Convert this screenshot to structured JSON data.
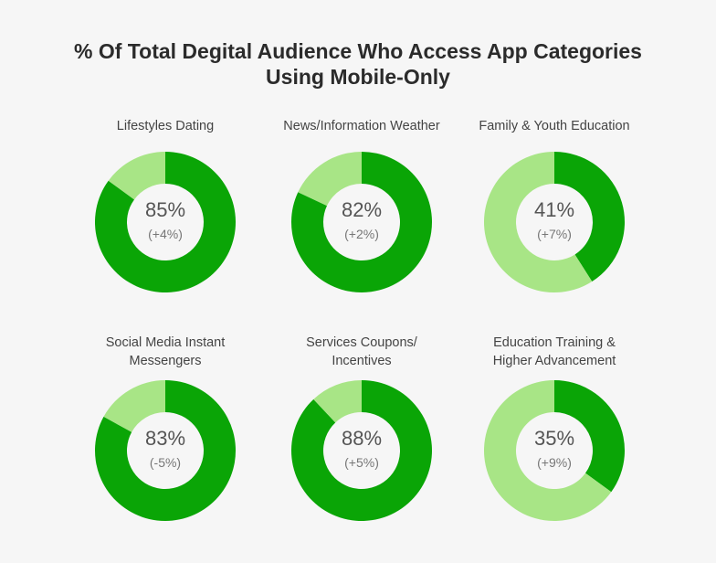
{
  "title_line1": "% Of Total Degital Audience Who Access App Categories",
  "title_line2": "Using Mobile-Only",
  "colors": {
    "primary": "#0aa506",
    "secondary": "#a8e586",
    "center": "#f6f6f6"
  },
  "chart_data": [
    {
      "type": "pie",
      "label_lines": [
        "Lifestyles Dating"
      ],
      "value": 85,
      "value_text": "85%",
      "change_text": "(+4%)"
    },
    {
      "type": "pie",
      "label_lines": [
        "News/Information Weather"
      ],
      "value": 82,
      "value_text": "82%",
      "change_text": "(+2%)"
    },
    {
      "type": "pie",
      "label_lines": [
        "Family & Youth Education"
      ],
      "value": 41,
      "value_text": "41%",
      "change_text": "(+7%)"
    },
    {
      "type": "pie",
      "label_lines": [
        "Social Media Instant",
        "Messengers"
      ],
      "value": 83,
      "value_text": "83%",
      "change_text": "(-5%)"
    },
    {
      "type": "pie",
      "label_lines": [
        "Services Coupons/",
        "Incentives"
      ],
      "value": 88,
      "value_text": "88%",
      "change_text": "(+5%)"
    },
    {
      "type": "pie",
      "label_lines": [
        "Education Training &",
        "Higher Advancement"
      ],
      "value": 35,
      "value_text": "35%",
      "change_text": "(+9%)"
    }
  ]
}
